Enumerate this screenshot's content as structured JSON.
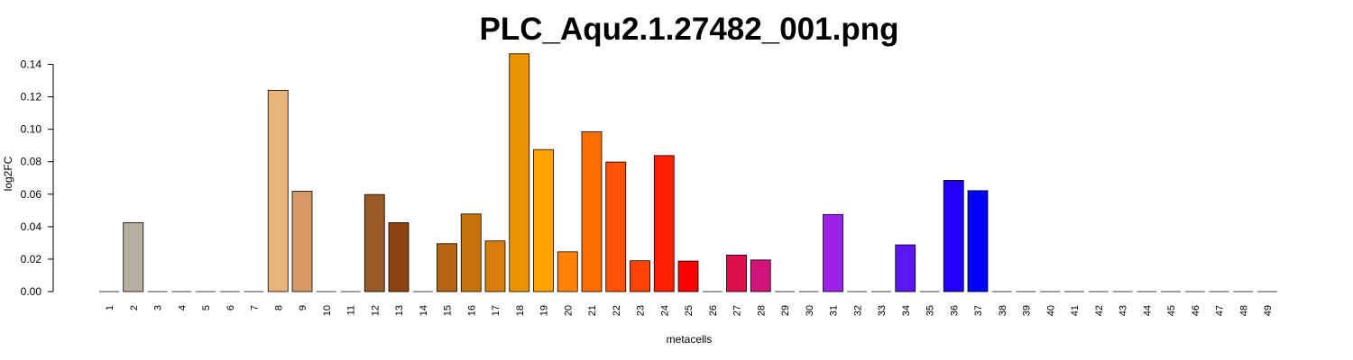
{
  "chart_data": {
    "type": "bar",
    "title": "PLC_Aqu2.1.27482_001.png",
    "xlabel": "metacells",
    "ylabel": "log2FC",
    "ylim": [
      0,
      0.14
    ],
    "yticks": [
      "0.00",
      "0.02",
      "0.04",
      "0.06",
      "0.08",
      "0.10",
      "0.12",
      "0.14"
    ],
    "categories": [
      "1",
      "2",
      "3",
      "4",
      "5",
      "6",
      "7",
      "8",
      "9",
      "10",
      "11",
      "12",
      "13",
      "14",
      "15",
      "16",
      "17",
      "18",
      "19",
      "20",
      "21",
      "22",
      "23",
      "24",
      "25",
      "26",
      "27",
      "28",
      "29",
      "30",
      "31",
      "32",
      "33",
      "34",
      "35",
      "36",
      "37",
      "38",
      "39",
      "40",
      "41",
      "42",
      "43",
      "44",
      "45",
      "46",
      "47",
      "48",
      "49"
    ],
    "values": [
      0,
      0.0425,
      0,
      0,
      0,
      0,
      0,
      0.124,
      0.0618,
      0,
      0,
      0.0598,
      0.0425,
      0,
      0.0295,
      0.0478,
      0.0312,
      0.1465,
      0.0875,
      0.0245,
      0.0985,
      0.0798,
      0.019,
      0.0838,
      0.0188,
      0,
      0.0225,
      0.0195,
      0,
      0,
      0.0475,
      0,
      0,
      0.0288,
      0,
      0.0685,
      0.0622,
      0,
      0,
      0,
      0,
      0,
      0,
      0,
      0,
      0,
      0,
      0,
      0
    ],
    "colors": [
      "#ffffff",
      "#b8afa3",
      "#ffffff",
      "#ffffff",
      "#ffffff",
      "#ffffff",
      "#ffffff",
      "#e8b47c",
      "#d49966",
      "#ffffff",
      "#ffffff",
      "#9a5a2a",
      "#8b4513",
      "#ffffff",
      "#b5640f",
      "#c4720c",
      "#d87f0b",
      "#ea9200",
      "#ffa200",
      "#ff8205",
      "#ff6f00",
      "#ff5208",
      "#ff4304",
      "#ff1e00",
      "#ff0000",
      "#ffffff",
      "#dc0e4a",
      "#cf1378",
      "#ffffff",
      "#ffffff",
      "#9a22ea",
      "#ffffff",
      "#ffffff",
      "#5a18f0",
      "#ffffff",
      "#2200f8",
      "#0000ff",
      "#ffffff",
      "#ffffff",
      "#ffffff",
      "#ffffff",
      "#ffffff",
      "#ffffff",
      "#ffffff",
      "#ffffff",
      "#ffffff",
      "#ffffff",
      "#ffffff",
      "#ffffff"
    ]
  }
}
